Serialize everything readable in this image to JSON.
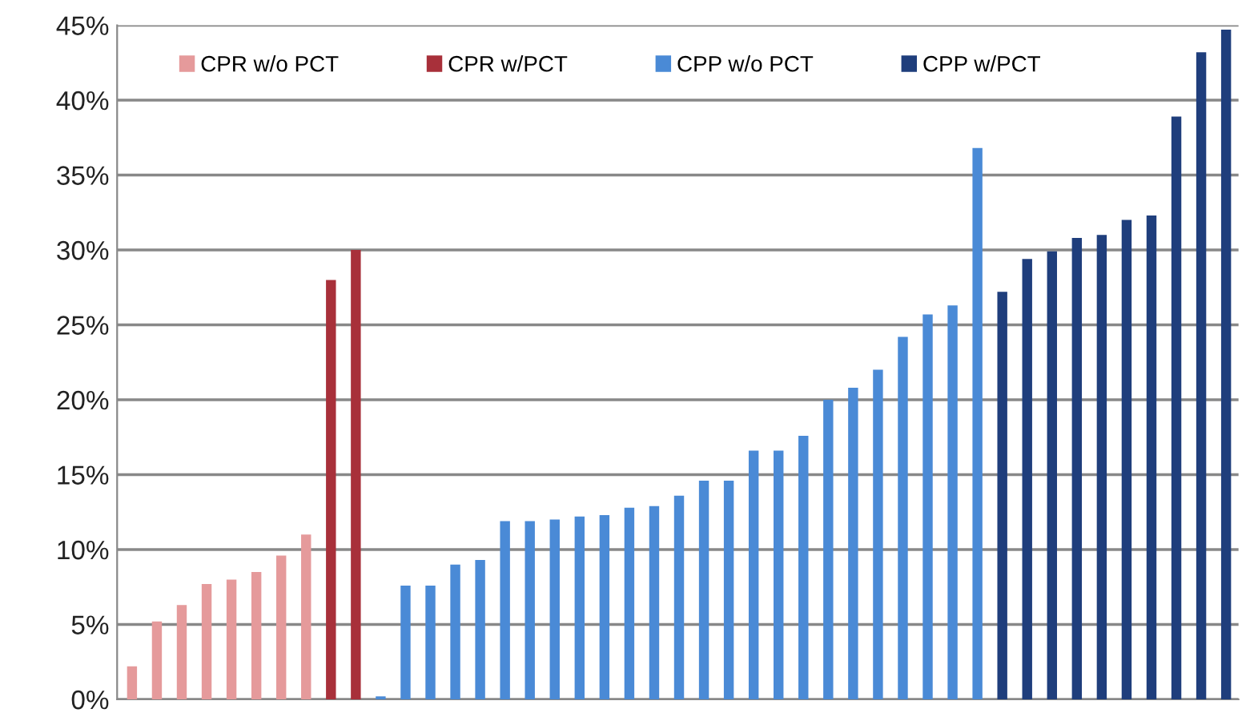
{
  "chart_data": {
    "type": "bar",
    "categories": [
      null,
      null,
      null,
      null,
      null,
      null,
      null,
      null,
      null,
      null,
      null,
      null,
      null,
      null,
      null,
      null,
      null,
      null,
      null,
      null,
      null,
      null,
      null,
      null,
      null,
      null,
      null,
      null,
      null,
      null,
      null,
      null,
      null,
      null,
      null,
      null,
      null,
      null,
      null,
      null,
      null,
      null,
      null,
      null,
      null
    ],
    "series": [
      {
        "name": "CPR w/o PCT",
        "color": "#e59a9b",
        "values": [
          2.2,
          5.2,
          6.3,
          7.7,
          8.0,
          8.5,
          9.6,
          11.0,
          null,
          null,
          null,
          null,
          null,
          null,
          null,
          null,
          null,
          null,
          null,
          null,
          null,
          null,
          null,
          null,
          null,
          null,
          null,
          null,
          null,
          null,
          null,
          null,
          null,
          null,
          null,
          null,
          null,
          null,
          null,
          null,
          null,
          null,
          null,
          null,
          null
        ]
      },
      {
        "name": "CPR w/PCT",
        "color": "#a8303a",
        "values": [
          null,
          null,
          null,
          null,
          null,
          null,
          null,
          null,
          28.0,
          30.0,
          null,
          null,
          null,
          null,
          null,
          null,
          null,
          null,
          null,
          null,
          null,
          null,
          null,
          null,
          null,
          null,
          null,
          null,
          null,
          null,
          null,
          null,
          null,
          null,
          null,
          null,
          null,
          null,
          null,
          null,
          null,
          null,
          null,
          null,
          null
        ]
      },
      {
        "name": "CPP w/o PCT",
        "color": "#4a8ad6",
        "values": [
          null,
          null,
          null,
          null,
          null,
          null,
          null,
          null,
          null,
          null,
          0.2,
          7.6,
          7.6,
          9.0,
          9.3,
          11.9,
          11.9,
          12.0,
          12.2,
          12.3,
          12.8,
          12.9,
          13.6,
          14.6,
          14.6,
          16.6,
          16.6,
          17.6,
          20.0,
          20.8,
          22.0,
          24.2,
          25.7,
          26.3,
          36.8,
          null,
          null,
          null,
          null,
          null,
          null,
          null,
          null,
          null,
          null
        ]
      },
      {
        "name": "CPP w/PCT",
        "color": "#1f3e7c",
        "values": [
          null,
          null,
          null,
          null,
          null,
          null,
          null,
          null,
          null,
          null,
          null,
          null,
          null,
          null,
          null,
          null,
          null,
          null,
          null,
          null,
          null,
          null,
          null,
          null,
          null,
          null,
          null,
          null,
          null,
          null,
          null,
          null,
          null,
          null,
          null,
          27.2,
          29.4,
          29.9,
          30.8,
          31.0,
          32.0,
          32.3,
          38.9,
          43.2,
          44.7
        ]
      }
    ],
    "ylim": [
      0,
      45
    ],
    "yticks": [
      {
        "value": 0,
        "label": "0%"
      },
      {
        "value": 5,
        "label": "5%"
      },
      {
        "value": 10,
        "label": "10%"
      },
      {
        "value": 15,
        "label": "15%"
      },
      {
        "value": 20,
        "label": "20%"
      },
      {
        "value": 25,
        "label": "25%"
      },
      {
        "value": 30,
        "label": "30%"
      },
      {
        "value": 35,
        "label": "35%"
      },
      {
        "value": 40,
        "label": "40%"
      },
      {
        "value": 45,
        "label": "45%"
      }
    ],
    "grid": "y",
    "legend": "top"
  }
}
